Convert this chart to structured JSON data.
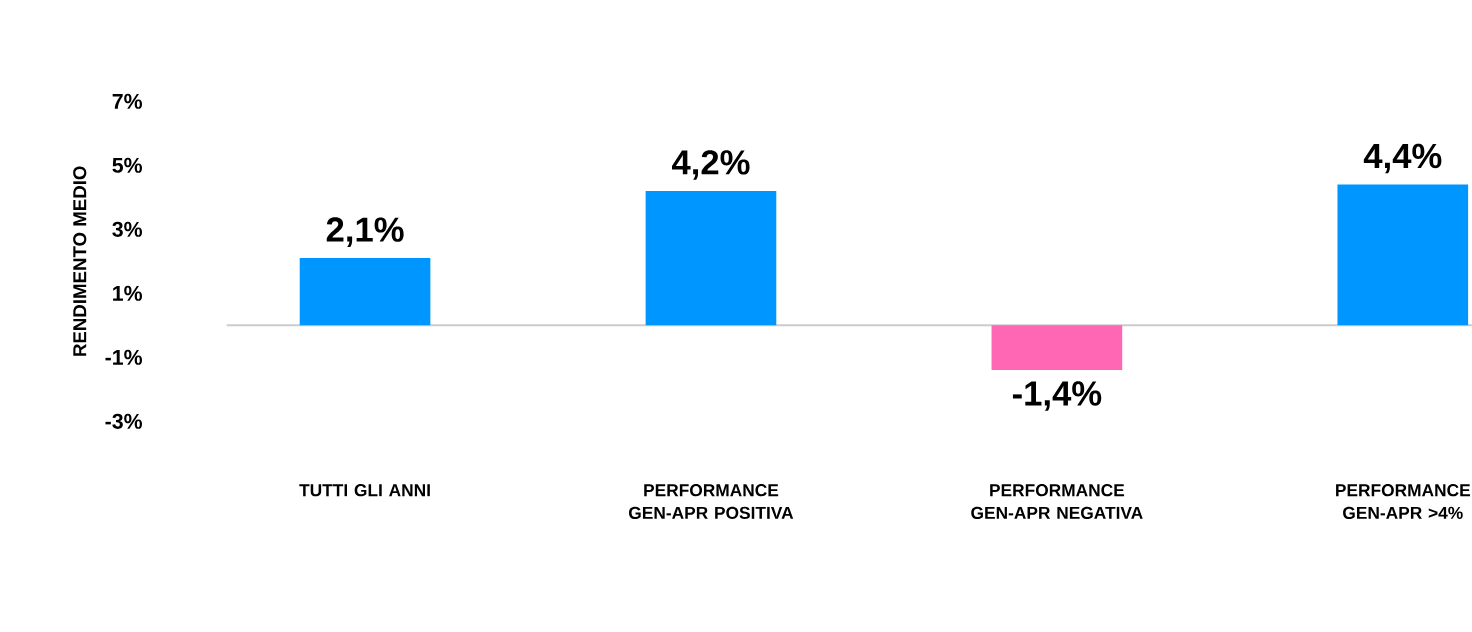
{
  "chart_data": {
    "type": "bar",
    "ylabel": "RENDIMENTO MEDIO",
    "categories": [
      "TUTTI GLI ANNI",
      "PERFORMANCE GEN-APR POSITIVA",
      "PERFORMANCE GEN-APR NEGATIVA",
      "PERFORMANCE GEN-APR >4%"
    ],
    "values": [
      2.1,
      4.2,
      -1.4,
      4.4
    ],
    "colors": [
      "#0096ff",
      "#0096ff",
      "#ff66b3",
      "#0096ff"
    ],
    "value_labels": [
      "2,1%",
      "4,2%",
      "-1,4%",
      "4,4%"
    ],
    "ylim": [
      -3,
      7
    ],
    "yticks": [
      {
        "value": 7,
        "label": "7%"
      },
      {
        "value": 5,
        "label": "5%"
      },
      {
        "value": 3,
        "label": "3%"
      },
      {
        "value": 1,
        "label": "1%"
      },
      {
        "value": -1,
        "label": "-1%"
      },
      {
        "value": -3,
        "label": "-3%"
      }
    ]
  }
}
